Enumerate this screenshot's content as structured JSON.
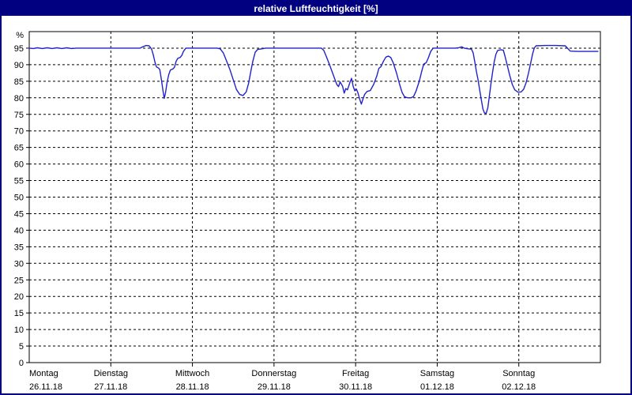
{
  "window": {
    "title": "relative Luftfeuchtigkeit [%]"
  },
  "colors": {
    "titlebar_bg": "#000080",
    "titlebar_text": "#ffffff",
    "window_border": "#000080",
    "plot_bg": "#ffffff",
    "line": "#2222cc",
    "grid": "#000000",
    "text": "#000000"
  },
  "chart_data": {
    "type": "line",
    "title": "relative Luftfeuchtigkeit [%]",
    "ylabel": "%",
    "y_unit_label": "%",
    "ylim": [
      0,
      100
    ],
    "yticks": [
      0,
      5,
      10,
      15,
      20,
      25,
      30,
      35,
      40,
      45,
      50,
      55,
      60,
      65,
      70,
      75,
      80,
      85,
      90,
      95
    ],
    "grid": "dashed horizontal and vertical",
    "legend_position": "none",
    "x_range_days": 7,
    "days": [
      {
        "name": "Montag",
        "date": "26.11.18"
      },
      {
        "name": "Dienstag",
        "date": "27.11.18"
      },
      {
        "name": "Mittwoch",
        "date": "28.11.18"
      },
      {
        "name": "Donnerstag",
        "date": "29.11.18"
      },
      {
        "name": "Freitag",
        "date": "30.11.18"
      },
      {
        "name": "Samstag",
        "date": "01.12.18"
      },
      {
        "name": "Sonntag",
        "date": "02.12.18"
      }
    ],
    "series": [
      {
        "name": "relative Luftfeuchtigkeit [%]",
        "color": "#2222cc",
        "points": [
          [
            0,
            95
          ],
          [
            0.05,
            94.9
          ],
          [
            0.1,
            95.1
          ],
          [
            0.16,
            94.9
          ],
          [
            0.22,
            95.1
          ],
          [
            0.28,
            94.9
          ],
          [
            0.34,
            95.1
          ],
          [
            0.4,
            94.9
          ],
          [
            0.46,
            95.1
          ],
          [
            0.52,
            94.9
          ],
          [
            0.58,
            95
          ],
          [
            0.66,
            95
          ],
          [
            0.8,
            95
          ],
          [
            1.0,
            95
          ],
          [
            1.2,
            95
          ],
          [
            1.36,
            95
          ],
          [
            1.39,
            95.4
          ],
          [
            1.43,
            95.8
          ],
          [
            1.47,
            95.7
          ],
          [
            1.5,
            94.7
          ],
          [
            1.52,
            93
          ],
          [
            1.54,
            90.8
          ],
          [
            1.56,
            89.3
          ],
          [
            1.585,
            89
          ],
          [
            1.6,
            88.5
          ],
          [
            1.62,
            85.5
          ],
          [
            1.64,
            82
          ],
          [
            1.655,
            79.8
          ],
          [
            1.67,
            81.5
          ],
          [
            1.69,
            84.8
          ],
          [
            1.71,
            87
          ],
          [
            1.73,
            88.4
          ],
          [
            1.76,
            88.7
          ],
          [
            1.78,
            89.2
          ],
          [
            1.8,
            91
          ],
          [
            1.82,
            91.9
          ],
          [
            1.85,
            92.2
          ],
          [
            1.87,
            92.8
          ],
          [
            1.89,
            94
          ],
          [
            1.92,
            95
          ],
          [
            2.1,
            95
          ],
          [
            2.3,
            95
          ],
          [
            2.34,
            94.8
          ],
          [
            2.38,
            93.5
          ],
          [
            2.42,
            91
          ],
          [
            2.46,
            88.5
          ],
          [
            2.5,
            85.5
          ],
          [
            2.54,
            82.5
          ],
          [
            2.58,
            81
          ],
          [
            2.62,
            80.7
          ],
          [
            2.66,
            81.8
          ],
          [
            2.69,
            84.5
          ],
          [
            2.72,
            88.5
          ],
          [
            2.74,
            91
          ],
          [
            2.77,
            93.8
          ],
          [
            2.8,
            94.6
          ],
          [
            2.85,
            94.8
          ],
          [
            2.9,
            95
          ],
          [
            3.2,
            95
          ],
          [
            3.5,
            95
          ],
          [
            3.58,
            95
          ],
          [
            3.61,
            94.3
          ],
          [
            3.64,
            92.5
          ],
          [
            3.68,
            90
          ],
          [
            3.71,
            88
          ],
          [
            3.74,
            86
          ],
          [
            3.77,
            84
          ],
          [
            3.79,
            83.4
          ],
          [
            3.81,
            84.8
          ],
          [
            3.84,
            83.5
          ],
          [
            3.86,
            81.4
          ],
          [
            3.88,
            82.8
          ],
          [
            3.9,
            82.4
          ],
          [
            3.93,
            84.6
          ],
          [
            3.95,
            85.9
          ],
          [
            3.97,
            83.5
          ],
          [
            3.99,
            82.1
          ],
          [
            4.01,
            82.6
          ],
          [
            4.03,
            81.4
          ],
          [
            4.05,
            79.6
          ],
          [
            4.07,
            78.1
          ],
          [
            4.09,
            79.6
          ],
          [
            4.11,
            81
          ],
          [
            4.14,
            81.9
          ],
          [
            4.18,
            82.2
          ],
          [
            4.22,
            84
          ],
          [
            4.26,
            86.6
          ],
          [
            4.285,
            88.9
          ],
          [
            4.31,
            89.4
          ],
          [
            4.34,
            91
          ],
          [
            4.37,
            92.3
          ],
          [
            4.4,
            92.6
          ],
          [
            4.43,
            92.2
          ],
          [
            4.46,
            90.6
          ],
          [
            4.5,
            87.6
          ],
          [
            4.54,
            84
          ],
          [
            4.57,
            81.6
          ],
          [
            4.6,
            80.3
          ],
          [
            4.64,
            80
          ],
          [
            4.68,
            80
          ],
          [
            4.71,
            80.4
          ],
          [
            4.74,
            82
          ],
          [
            4.78,
            85
          ],
          [
            4.81,
            88
          ],
          [
            4.835,
            90.2
          ],
          [
            4.865,
            90.6
          ],
          [
            4.89,
            92
          ],
          [
            4.92,
            94
          ],
          [
            4.95,
            95
          ],
          [
            5.1,
            95
          ],
          [
            5.22,
            95
          ],
          [
            5.26,
            95.1
          ],
          [
            5.3,
            95.4
          ],
          [
            5.33,
            95
          ],
          [
            5.38,
            94.8
          ],
          [
            5.42,
            94.7
          ],
          [
            5.44,
            93.6
          ],
          [
            5.46,
            91
          ],
          [
            5.48,
            88
          ],
          [
            5.5,
            85.5
          ],
          [
            5.52,
            82.5
          ],
          [
            5.54,
            79.5
          ],
          [
            5.56,
            76.6
          ],
          [
            5.58,
            75.4
          ],
          [
            5.6,
            75.3
          ],
          [
            5.62,
            77
          ],
          [
            5.64,
            80.6
          ],
          [
            5.66,
            84.5
          ],
          [
            5.68,
            88
          ],
          [
            5.7,
            91
          ],
          [
            5.72,
            93.2
          ],
          [
            5.74,
            94.3
          ],
          [
            5.78,
            94.5
          ],
          [
            5.81,
            94.4
          ],
          [
            5.83,
            92.6
          ],
          [
            5.86,
            89.6
          ],
          [
            5.89,
            86.6
          ],
          [
            5.92,
            84
          ],
          [
            5.95,
            82.4
          ],
          [
            5.99,
            81.7
          ],
          [
            6.03,
            81.8
          ],
          [
            6.06,
            82.6
          ],
          [
            6.09,
            84.6
          ],
          [
            6.12,
            87.6
          ],
          [
            6.15,
            91
          ],
          [
            6.17,
            93.4
          ],
          [
            6.19,
            95
          ],
          [
            6.21,
            95.7
          ],
          [
            6.32,
            95.8
          ],
          [
            6.45,
            95.8
          ],
          [
            6.57,
            95.7
          ],
          [
            6.6,
            94.9
          ],
          [
            6.63,
            94.1
          ],
          [
            6.72,
            94
          ],
          [
            6.85,
            94
          ],
          [
            6.97,
            94
          ]
        ]
      }
    ]
  }
}
